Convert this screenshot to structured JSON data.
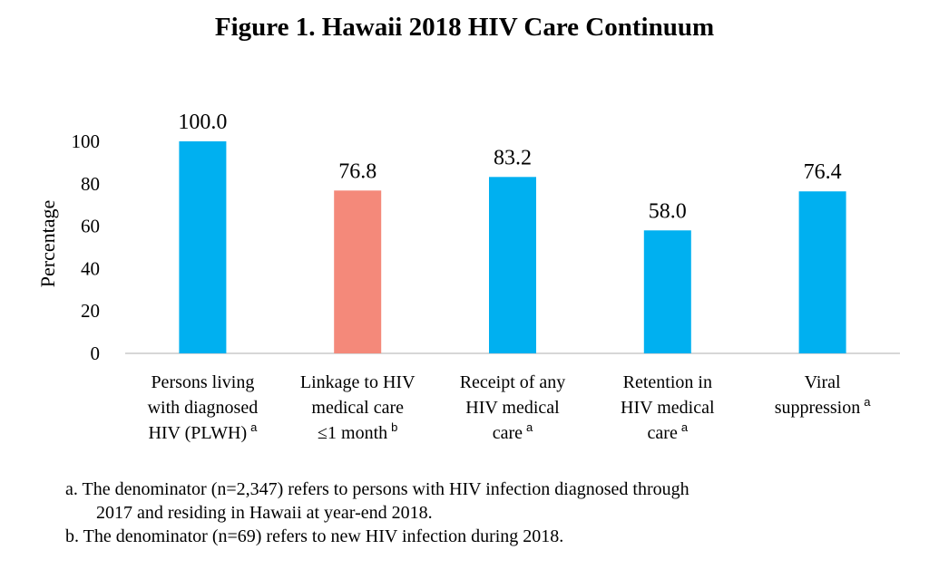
{
  "chart_data": {
    "type": "bar",
    "title": "Figure 1. Hawaii 2018 HIV Care Continuum",
    "ylabel": "Percentage",
    "xlabel": "",
    "ylim": [
      0,
      100
    ],
    "yticks": [
      0,
      20,
      40,
      60,
      80,
      100
    ],
    "grid": false,
    "categories": [
      [
        "Persons living",
        "with diagnosed",
        "HIV (PLWH)"
      ],
      [
        "Linkage to HIV",
        "medical care",
        "≤1 month"
      ],
      [
        "Receipt of any",
        "HIV medical",
        "care"
      ],
      [
        "Retention in",
        "HIV medical",
        "care"
      ],
      [
        "Viral",
        "suppression"
      ]
    ],
    "superscripts": [
      "a",
      "b",
      "a",
      "a",
      "a"
    ],
    "values": [
      100.0,
      76.8,
      83.2,
      58.0,
      76.4
    ],
    "data_labels": [
      "100.0",
      "76.8",
      "83.2",
      "58.0",
      "76.4"
    ],
    "colors": [
      "#00b0f0",
      "#f4897a",
      "#00b0f0",
      "#00b0f0",
      "#00b0f0"
    ]
  },
  "footnotes": {
    "a_line1": "a. The denominator (n=2,347) refers to persons with HIV infection diagnosed through",
    "a_line2": "2017 and residing in Hawaii at year-end 2018.",
    "b": "b. The denominator (n=69) refers to new HIV infection during 2018."
  }
}
